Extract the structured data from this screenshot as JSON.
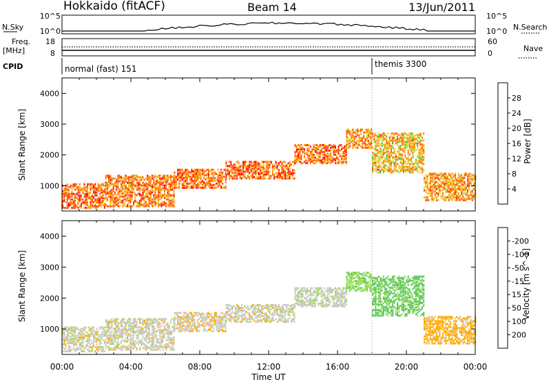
{
  "header": {
    "station": "Hokkaido (fitACF)",
    "beam": "Beam 14",
    "date": "13/Jun/2011"
  },
  "status_panel": {
    "nsky_label": "N.Sky",
    "nsky_ticks": [
      "10^5",
      "10^0"
    ],
    "nsearch_label": "N.Search",
    "nsearch_ticks": [
      "10^5",
      "10^0"
    ],
    "freq_label": "Freq.",
    "freq_unit": "[MHz]",
    "freq_ticks": [
      "18",
      "8"
    ],
    "nave_label": "Nave",
    "nave_ticks": [
      "60",
      "0"
    ],
    "cpid_label": "CPID",
    "cpid_modes": [
      {
        "label": "normal (fast) 151",
        "start_hour": 0,
        "end_hour": 18
      },
      {
        "label": "themis 3300",
        "start_hour": 18,
        "end_hour": 24
      }
    ]
  },
  "colors": {
    "power_scale": [
      "#0000ff",
      "#1e5aa0",
      "#2e8b57",
      "#32c832",
      "#c8dc32",
      "#ffaa00",
      "#ff7800",
      "#ff3c00",
      "#ff0000"
    ],
    "velocity_scale": [
      "#1e3cb4",
      "#2e8b57",
      "#5ac85a",
      "#96dc50",
      "#c8c8be",
      "#ffaa00",
      "#ff7800",
      "#ff3c00",
      "#ff0000"
    ]
  },
  "chart_data": [
    {
      "type": "heatmap",
      "name_shown": "Power",
      "ylabel": "Slant Range [km]",
      "xlabel": "",
      "ylim": [
        180,
        4500
      ],
      "xlim": [
        0,
        24
      ],
      "y_ticks": [
        "1000",
        "2000",
        "3000",
        "4000"
      ],
      "x_ticks": [
        "00:00",
        "04:00",
        "08:00",
        "12:00",
        "16:00",
        "20:00",
        "00:00"
      ],
      "colorbar": {
        "label": "Power [dB]",
        "ticks": [
          "4",
          "8",
          "12",
          "16",
          "20",
          "24",
          "28"
        ]
      },
      "echo_bands": [
        {
          "start_hour": 0,
          "end_hour": 2.5,
          "range_low": 250,
          "range_high": 1050,
          "power": 27
        },
        {
          "start_hour": 2.5,
          "end_hour": 6.5,
          "range_low": 300,
          "range_high": 1300,
          "power": 26
        },
        {
          "start_hour": 6.5,
          "end_hour": 9.5,
          "range_low": 900,
          "range_high": 1500,
          "power": 27
        },
        {
          "start_hour": 9.5,
          "end_hour": 13.5,
          "range_low": 1200,
          "range_high": 1750,
          "power": 28
        },
        {
          "start_hour": 13.5,
          "end_hour": 16.5,
          "range_low": 1700,
          "range_high": 2300,
          "power": 27
        },
        {
          "start_hour": 16.5,
          "end_hour": 18,
          "range_low": 2200,
          "range_high": 2800,
          "power": 25
        },
        {
          "start_hour": 18,
          "end_hour": 21,
          "range_low": 1400,
          "range_high": 2700,
          "power": 22
        },
        {
          "start_hour": 21,
          "end_hour": 24,
          "range_low": 500,
          "range_high": 1400,
          "power": 24
        }
      ]
    },
    {
      "type": "heatmap",
      "name_shown": "Velocity",
      "ylabel": "Slant Range [km]",
      "xlabel": "Time UT",
      "ylim": [
        180,
        4500
      ],
      "xlim": [
        0,
        24
      ],
      "y_ticks": [
        "1000",
        "2000",
        "3000",
        "4000"
      ],
      "x_ticks": [
        "00:00",
        "04:00",
        "08:00",
        "12:00",
        "16:00",
        "20:00",
        "00:00"
      ],
      "colorbar": {
        "label": "Velocity [m s^-1]",
        "ticks": [
          "200",
          "100",
          "50",
          "15",
          "-15",
          "-50",
          "-100",
          "-200"
        ]
      },
      "echo_bands": [
        {
          "start_hour": 0,
          "end_hour": 2.5,
          "range_low": 250,
          "range_high": 1050,
          "velocity": 0
        },
        {
          "start_hour": 2.5,
          "end_hour": 6.5,
          "range_low": 300,
          "range_high": 1300,
          "velocity": 0
        },
        {
          "start_hour": 6.5,
          "end_hour": 9.5,
          "range_low": 900,
          "range_high": 1500,
          "velocity": -5
        },
        {
          "start_hour": 9.5,
          "end_hour": 13.5,
          "range_low": 1200,
          "range_high": 1750,
          "velocity": 0
        },
        {
          "start_hour": 13.5,
          "end_hour": 16.5,
          "range_low": 1700,
          "range_high": 2300,
          "velocity": 5
        },
        {
          "start_hour": 16.5,
          "end_hour": 18,
          "range_low": 2200,
          "range_high": 2800,
          "velocity": 40
        },
        {
          "start_hour": 18,
          "end_hour": 21,
          "range_low": 1400,
          "range_high": 2700,
          "velocity": 60
        },
        {
          "start_hour": 21,
          "end_hour": 24,
          "range_low": 500,
          "range_high": 1400,
          "velocity": -30
        }
      ]
    }
  ]
}
